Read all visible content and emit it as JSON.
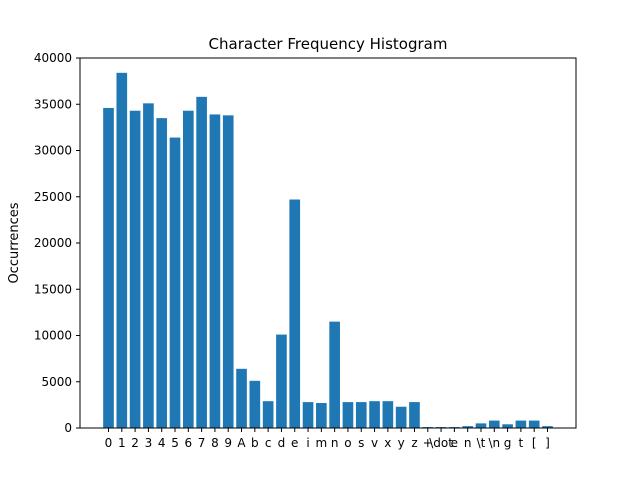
{
  "chart_data": {
    "type": "bar",
    "title": "Character Frequency Histogram",
    "xlabel": "",
    "ylabel": "Occurrences",
    "ylim": [
      0,
      40000
    ],
    "yticks": [
      0,
      5000,
      10000,
      15000,
      20000,
      25000,
      30000,
      35000,
      40000
    ],
    "grid": false,
    "bar_color": "#1f77b4",
    "categories": [
      "0",
      "1",
      "2",
      "3",
      "4",
      "5",
      "6",
      "7",
      "8",
      "9",
      "A",
      "b",
      "c",
      "d",
      "e",
      "i",
      "m",
      "n",
      "o",
      "s",
      "v",
      "x",
      "y",
      "z",
      "+",
      "\\dot",
      "e",
      "n",
      "\\t",
      "\\n",
      "g",
      "t",
      "[",
      "]"
    ],
    "values": [
      34600,
      38400,
      34300,
      35100,
      33500,
      31400,
      34300,
      35800,
      33900,
      33800,
      6400,
      5100,
      2900,
      10100,
      24700,
      2800,
      2700,
      11500,
      2800,
      2800,
      2900,
      2900,
      2300,
      2800,
      100,
      100,
      100,
      200,
      500,
      800,
      400,
      800,
      800,
      200
    ],
    "tick_labels": [
      {
        "text": "0",
        "i": 0
      },
      {
        "text": "1",
        "i": 1
      },
      {
        "text": "2",
        "i": 2
      },
      {
        "text": "3",
        "i": 3
      },
      {
        "text": "4",
        "i": 4
      },
      {
        "text": "5",
        "i": 5
      },
      {
        "text": "6",
        "i": 6
      },
      {
        "text": "7",
        "i": 7
      },
      {
        "text": "8",
        "i": 8
      },
      {
        "text": "9",
        "i": 9
      },
      {
        "text": "A",
        "i": 10
      },
      {
        "text": "b",
        "i": 11
      },
      {
        "text": "c",
        "i": 12
      },
      {
        "text": "d",
        "i": 13
      },
      {
        "text": "e",
        "i": 14
      },
      {
        "text": "i",
        "i": 15
      },
      {
        "text": "m",
        "i": 16
      },
      {
        "text": "n",
        "i": 17
      },
      {
        "text": "o",
        "i": 18
      },
      {
        "text": "s",
        "i": 19
      },
      {
        "text": "v",
        "i": 20
      },
      {
        "text": "x",
        "i": 21
      },
      {
        "text": "y",
        "i": 22
      },
      {
        "text": "z",
        "i": 23
      },
      {
        "text": "+",
        "i": 24
      },
      {
        "text": "\\dot",
        "i": 25
      },
      {
        "text": "e",
        "i": 26
      },
      {
        "text": "n",
        "i": 27
      },
      {
        "text": "\\t",
        "i": 28
      },
      {
        "text": "\\n",
        "i": 29
      },
      {
        "text": "g",
        "i": 30
      },
      {
        "text": "t",
        "i": 31
      },
      {
        "text": "[",
        "i": 32
      },
      {
        "text": "]",
        "i": 33
      }
    ]
  }
}
